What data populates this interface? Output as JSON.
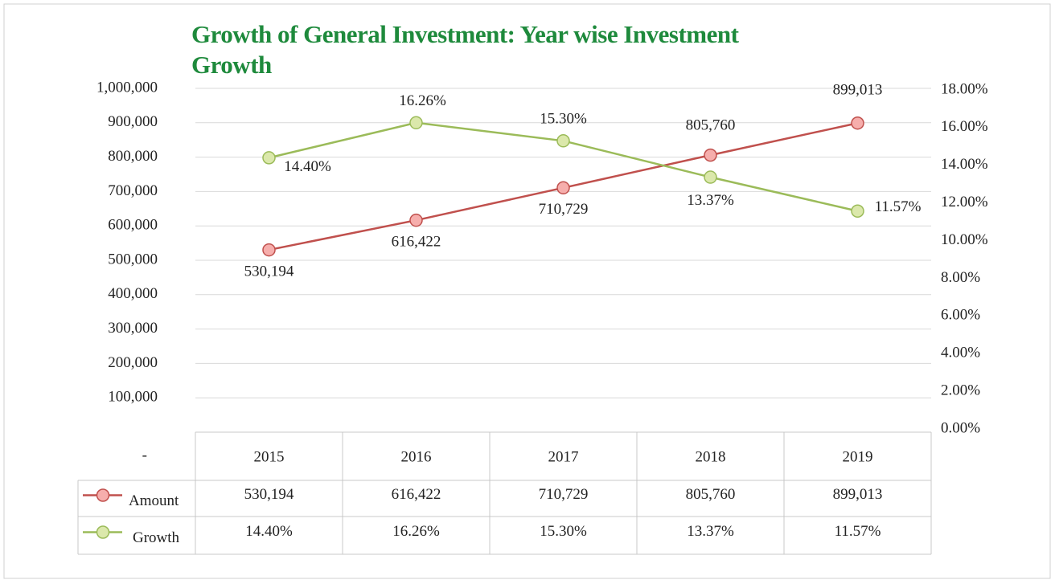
{
  "chart_data": {
    "type": "line",
    "title": "Growth of General Investment: Year wise Investment Growth",
    "categories": [
      "2015",
      "2016",
      "2017",
      "2018",
      "2019"
    ],
    "series": [
      {
        "name": "Amount",
        "color": "#c0504d",
        "axis": "y",
        "values": [
          530194,
          616422,
          710729,
          805760,
          899013
        ],
        "value_labels": [
          "530,194",
          "616,422",
          "710,729",
          "805,760",
          "899,013"
        ]
      },
      {
        "name": "Growth",
        "color": "#9bbb59",
        "axis": "y2",
        "values": [
          14.4,
          16.26,
          15.3,
          13.37,
          11.57
        ],
        "value_labels": [
          "14.40%",
          "16.26%",
          "15.30%",
          "13.37%",
          "11.57%"
        ]
      }
    ],
    "ylim": [
      0,
      1000000
    ],
    "yticks": [
      {
        "value": 0,
        "label": "-"
      },
      {
        "value": 100000,
        "label": "100,000"
      },
      {
        "value": 200000,
        "label": "200,000"
      },
      {
        "value": 300000,
        "label": "300,000"
      },
      {
        "value": 400000,
        "label": "400,000"
      },
      {
        "value": 500000,
        "label": "500,000"
      },
      {
        "value": 600000,
        "label": "600,000"
      },
      {
        "value": 700000,
        "label": "700,000"
      },
      {
        "value": 800000,
        "label": "800,000"
      },
      {
        "value": 900000,
        "label": "900,000"
      },
      {
        "value": 1000000,
        "label": "1,000,000"
      }
    ],
    "y2lim": [
      0,
      18
    ],
    "y2ticks": [
      {
        "value": 0,
        "label": "0.00%"
      },
      {
        "value": 2,
        "label": "2.00%"
      },
      {
        "value": 4,
        "label": "4.00%"
      },
      {
        "value": 6,
        "label": "6.00%"
      },
      {
        "value": 8,
        "label": "8.00%"
      },
      {
        "value": 10,
        "label": "10.00%"
      },
      {
        "value": 12,
        "label": "12.00%"
      },
      {
        "value": 14,
        "label": "14.00%"
      },
      {
        "value": 16,
        "label": "16.00%"
      },
      {
        "value": 18,
        "label": "18.00%"
      }
    ],
    "grid": true,
    "data_table": true
  }
}
